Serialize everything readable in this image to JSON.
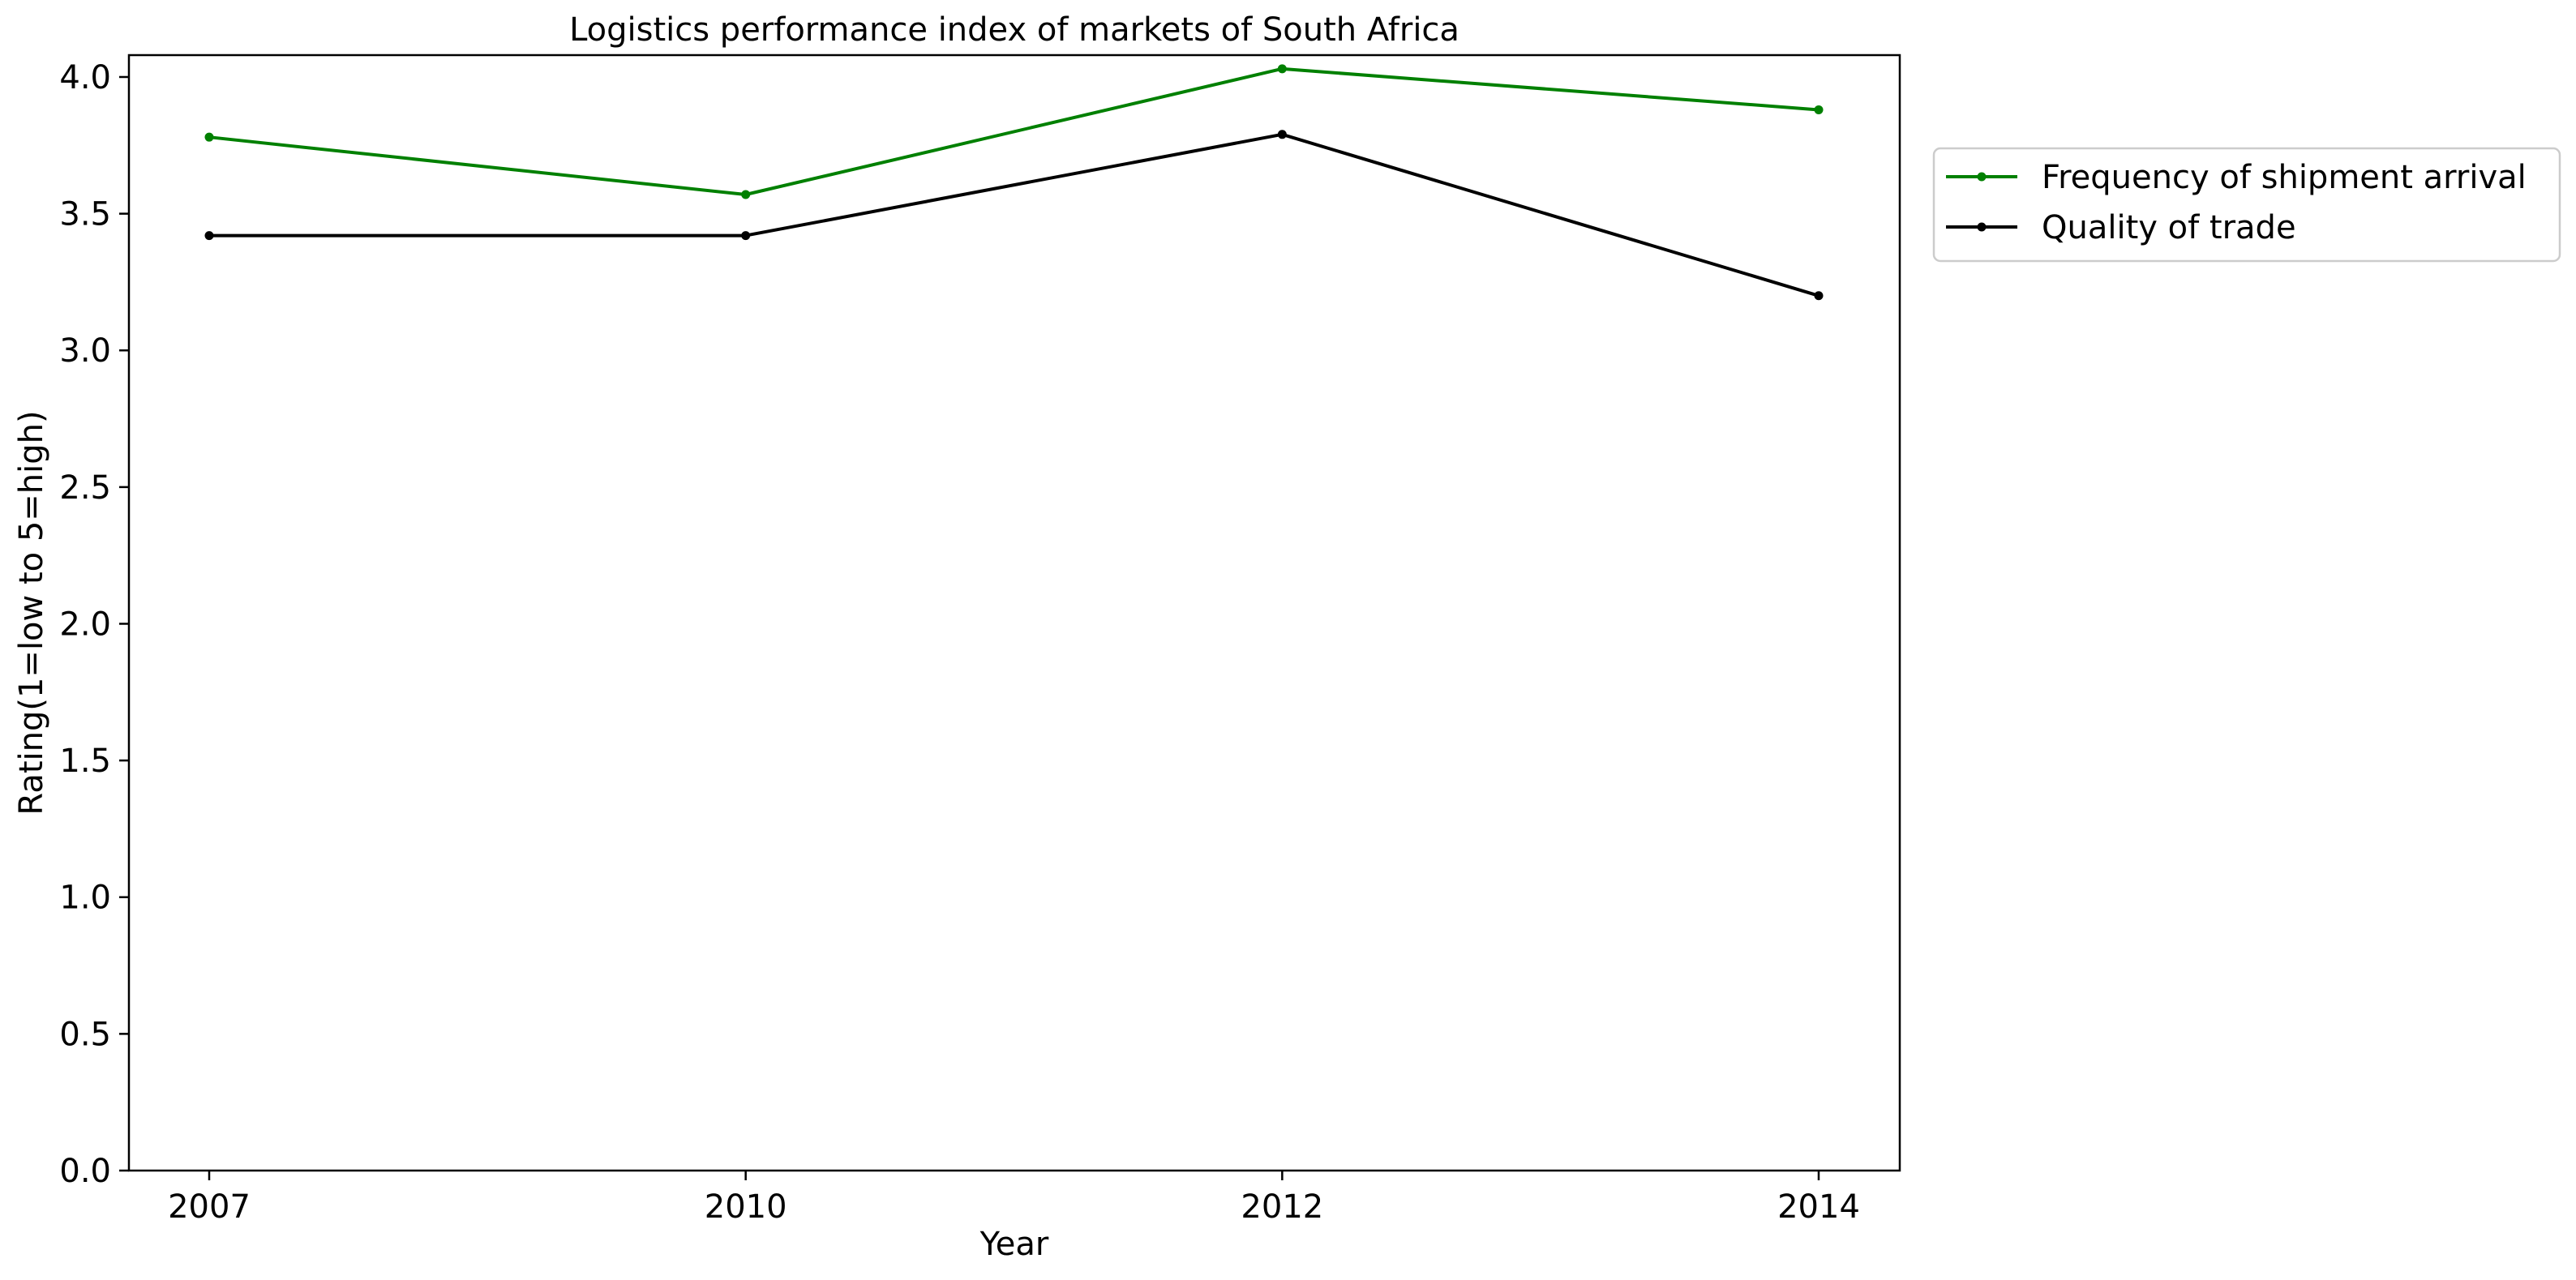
{
  "chart_data": {
    "type": "line",
    "title": "Logistics performance index of markets of South Africa",
    "xlabel": "Year",
    "ylabel": "Rating(1=low to 5=high)",
    "categories": [
      "2007",
      "2010",
      "2012",
      "2014"
    ],
    "ylim": [
      0,
      4.08
    ],
    "yticks": [
      "0.0",
      "0.5",
      "1.0",
      "1.5",
      "2.0",
      "2.5",
      "3.0",
      "3.5",
      "4.0"
    ],
    "grid": false,
    "legend_position": "outside-top-right",
    "series": [
      {
        "name": "Frequency of shipment arrival",
        "color": "#008000",
        "values": [
          3.78,
          3.57,
          4.03,
          3.88
        ]
      },
      {
        "name": "Quality of trade",
        "color": "#000000",
        "values": [
          3.42,
          3.42,
          3.79,
          3.2
        ]
      }
    ]
  }
}
